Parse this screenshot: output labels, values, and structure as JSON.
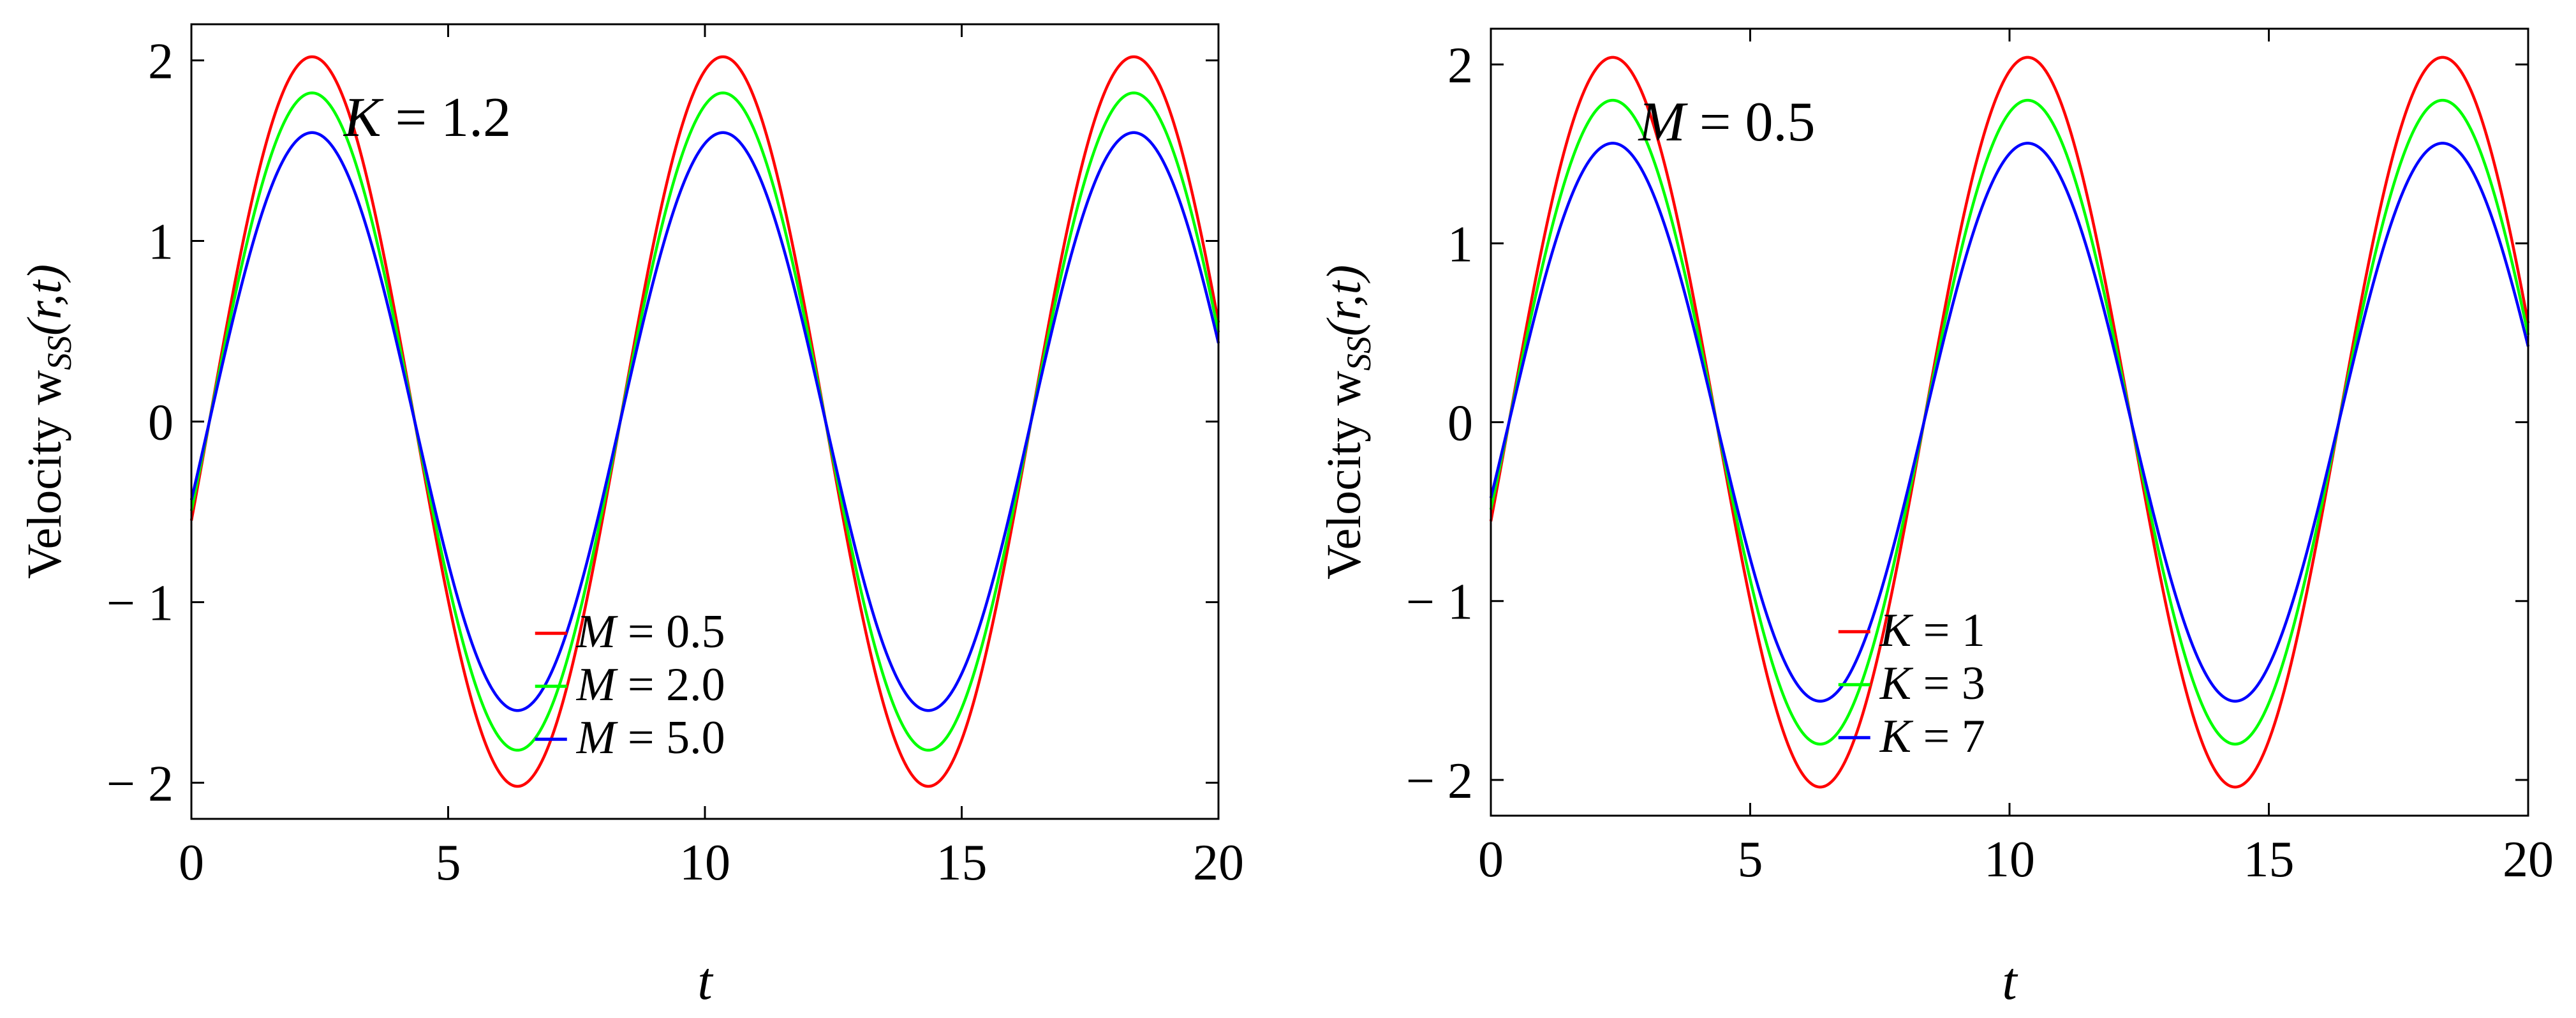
{
  "chart_data": [
    {
      "type": "line",
      "xlabel": "t",
      "ylabel": "Velocity w",
      "ylabel_sub": "SS",
      "ylabel_args": "(r,t)",
      "xlim": [
        0,
        20
      ],
      "ylim": [
        -2.2,
        2.2
      ],
      "xticks": [
        0,
        5,
        10,
        15,
        20
      ],
      "yticks": [
        2,
        1,
        0,
        -1,
        -2
      ],
      "xtick_labels": [
        "0",
        "5",
        "10",
        "15",
        "20"
      ],
      "ytick_labels": [
        "2",
        "1",
        "0",
        "− 1",
        "− 2"
      ],
      "annotation": {
        "var": "K",
        "rest": " = 1.2"
      },
      "legend_position": "bottom-center",
      "period": 8.0,
      "peak_t": 2.35,
      "series": [
        {
          "name": "M = 0.5",
          "var": "M",
          "rest": " = 0.5",
          "color": "#ff0000",
          "amplitude": 2.02,
          "t_end_value": 0.65
        },
        {
          "name": "M = 2.0",
          "var": "M",
          "rest": " = 2.0",
          "color": "#00ff00",
          "amplitude": 1.82,
          "t_end_value": 0.57
        },
        {
          "name": "M = 5.0",
          "var": "M",
          "rest": " = 5.0",
          "color": "#0000ff",
          "amplitude": 1.6,
          "t_end_value": 0.48
        }
      ]
    },
    {
      "type": "line",
      "xlabel": "t",
      "ylabel": "Velocity w",
      "ylabel_sub": "SS",
      "ylabel_args": "(r,t)",
      "xlim": [
        0,
        20
      ],
      "ylim": [
        -2.2,
        2.2
      ],
      "xticks": [
        0,
        5,
        10,
        15,
        20
      ],
      "yticks": [
        2,
        1,
        0,
        -1,
        -2
      ],
      "xtick_labels": [
        "0",
        "5",
        "10",
        "15",
        "20"
      ],
      "ytick_labels": [
        "2",
        "1",
        "0",
        "− 1",
        "− 2"
      ],
      "annotation": {
        "var": "M",
        "rest": " = 0.5"
      },
      "legend_position": "bottom-center",
      "period": 8.0,
      "peak_t": 2.35,
      "series": [
        {
          "name": "K = 1",
          "var": "K",
          "rest": " = 1",
          "color": "#ff0000",
          "amplitude": 2.04,
          "t_end_value": 0.66
        },
        {
          "name": "K = 3",
          "var": "K",
          "rest": " = 3",
          "color": "#00ff00",
          "amplitude": 1.8,
          "t_end_value": 0.56
        },
        {
          "name": "K = 7",
          "var": "K",
          "rest": " = 7",
          "color": "#0000ff",
          "amplitude": 1.56,
          "t_end_value": 0.44
        }
      ]
    }
  ]
}
